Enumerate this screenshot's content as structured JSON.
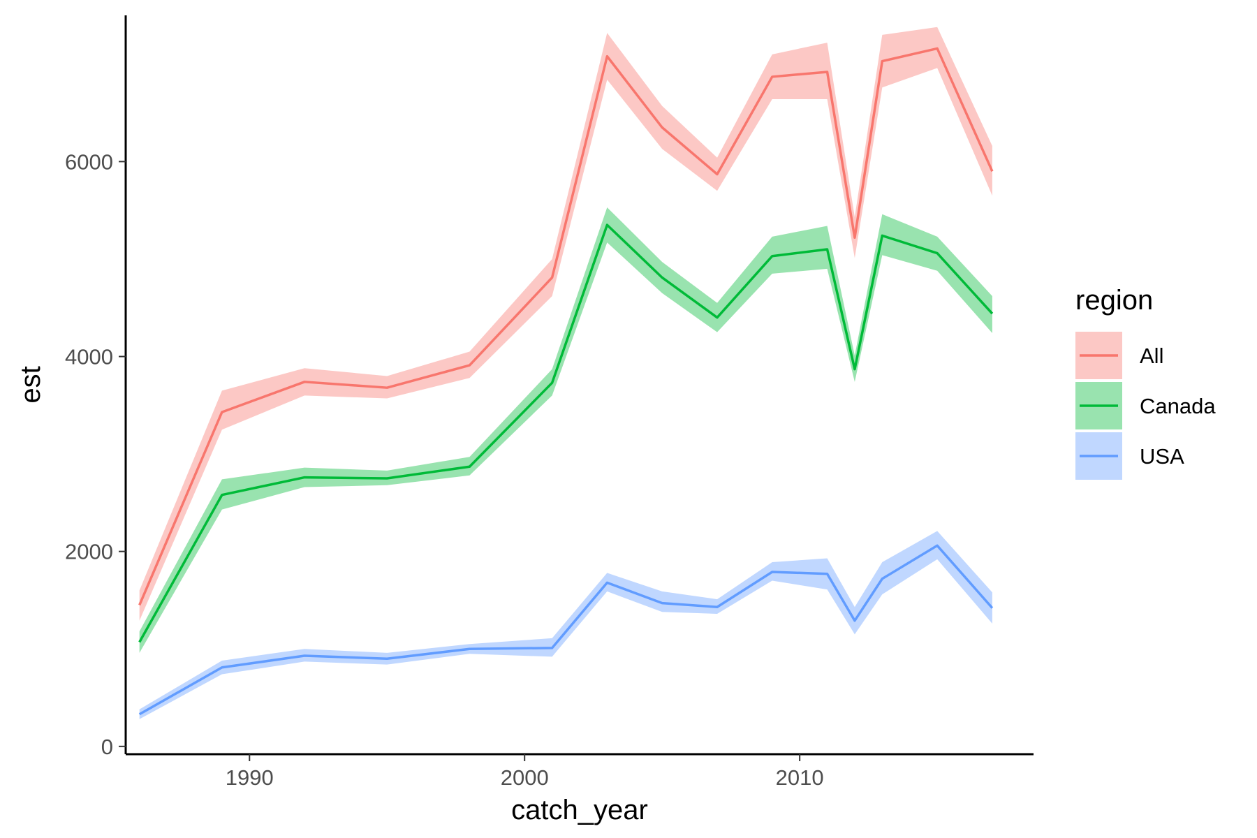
{
  "chart_data": {
    "type": "line",
    "title": "",
    "xlabel": "catch_year",
    "ylabel": "est",
    "xlim": [
      1985.5,
      2018.5
    ],
    "ylim": [
      -80,
      7500
    ],
    "x_ticks": [
      1990,
      2000,
      2010
    ],
    "y_ticks": [
      0,
      2000,
      4000,
      6000
    ],
    "grid": false,
    "legend": {
      "title": "region",
      "placement": "right"
    },
    "x": [
      1986,
      1989,
      1992,
      1995,
      1998,
      2001,
      2003,
      2005,
      2007,
      2009,
      2011,
      2012,
      2013,
      2015,
      2017
    ],
    "series": [
      {
        "name": "All",
        "color": "#F8766D",
        "band_color": "#F8766D",
        "values": [
          1450,
          3430,
          3740,
          3680,
          3910,
          4810,
          7080,
          6350,
          5870,
          6870,
          6920,
          5220,
          7030,
          7160,
          5900
        ],
        "lower": [
          1290,
          3250,
          3600,
          3570,
          3780,
          4620,
          6840,
          6130,
          5700,
          6640,
          6640,
          5010,
          6760,
          6960,
          5650
        ],
        "upper": [
          1600,
          3650,
          3880,
          3800,
          4050,
          5000,
          7320,
          6570,
          6040,
          7100,
          7220,
          5430,
          7300,
          7380,
          6160
        ]
      },
      {
        "name": "Canada",
        "color": "#00BA38",
        "band_color": "#00BA38",
        "values": [
          1070,
          2580,
          2760,
          2750,
          2870,
          3730,
          5350,
          4810,
          4400,
          5030,
          5100,
          3870,
          5240,
          5060,
          4440
        ],
        "lower": [
          960,
          2430,
          2660,
          2680,
          2780,
          3600,
          5170,
          4650,
          4250,
          4850,
          4900,
          3740,
          5040,
          4880,
          4240
        ],
        "upper": [
          1180,
          2740,
          2860,
          2830,
          2970,
          3870,
          5530,
          4970,
          4550,
          5230,
          5340,
          4010,
          5460,
          5230,
          4620
        ]
      },
      {
        "name": "USA",
        "color": "#619CFF",
        "band_color": "#619CFF",
        "values": [
          330,
          810,
          930,
          900,
          1000,
          1010,
          1680,
          1470,
          1430,
          1790,
          1770,
          1290,
          1720,
          2060,
          1420
        ],
        "lower": [
          280,
          740,
          870,
          840,
          950,
          920,
          1590,
          1380,
          1360,
          1700,
          1610,
          1150,
          1560,
          1920,
          1260
        ],
        "upper": [
          380,
          880,
          1000,
          960,
          1050,
          1110,
          1780,
          1590,
          1510,
          1890,
          1930,
          1430,
          1890,
          2210,
          1580
        ]
      }
    ]
  }
}
